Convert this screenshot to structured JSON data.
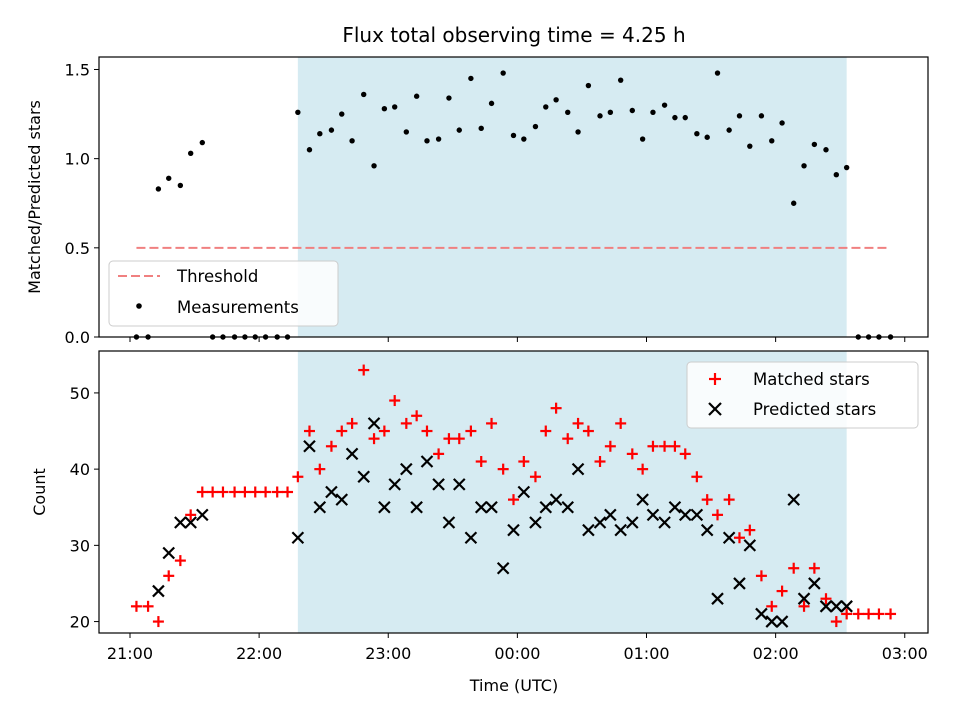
{
  "chart_data": {
    "title": "Flux total observing time = 4.25 h",
    "xlabel": "Time (UTC)",
    "x_unit": "hours since 21:00 UTC",
    "x_domain": [
      -0.24,
      6.18
    ],
    "xticks": [
      {
        "value": 0,
        "label": "21:00"
      },
      {
        "value": 1,
        "label": "22:00"
      },
      {
        "value": 2,
        "label": "23:00"
      },
      {
        "value": 3,
        "label": "00:00"
      },
      {
        "value": 4,
        "label": "01:00"
      },
      {
        "value": 5,
        "label": "02:00"
      },
      {
        "value": 6,
        "label": "03:00"
      }
    ],
    "shaded_interval": {
      "start": 1.3,
      "end": 5.55,
      "color": "#add8e6"
    },
    "panels": [
      {
        "type": "scatter",
        "ylabel": "Matched/Predicted stars",
        "ylim": [
          0,
          1.57
        ],
        "yticks": [
          {
            "value": 0,
            "label": "0.0"
          },
          {
            "value": 0.5,
            "label": "0.5"
          },
          {
            "value": 1,
            "label": "1.0"
          },
          {
            "value": 1.5,
            "label": "1.5"
          }
        ],
        "threshold": {
          "name": "Threshold",
          "value": 0.5,
          "x_range": [
            0.05,
            5.88
          ],
          "color": "#f08080"
        },
        "series": [
          {
            "name": "Measurements",
            "color": "#000000",
            "marker": "dot",
            "points": [
              [
                0.05,
                0
              ],
              [
                0.14,
                0
              ],
              [
                0.22,
                0.83
              ],
              [
                0.3,
                0.89
              ],
              [
                0.39,
                0.85
              ],
              [
                0.47,
                1.03
              ],
              [
                0.56,
                1.09
              ],
              [
                0.64,
                0
              ],
              [
                0.72,
                0
              ],
              [
                0.81,
                0
              ],
              [
                0.89,
                0
              ],
              [
                0.97,
                0
              ],
              [
                1.05,
                0
              ],
              [
                1.14,
                0
              ],
              [
                1.22,
                0
              ],
              [
                1.3,
                1.26
              ],
              [
                1.39,
                1.05
              ],
              [
                1.47,
                1.14
              ],
              [
                1.56,
                1.16
              ],
              [
                1.64,
                1.25
              ],
              [
                1.72,
                1.1
              ],
              [
                1.81,
                1.36
              ],
              [
                1.89,
                0.96
              ],
              [
                1.97,
                1.28
              ],
              [
                2.05,
                1.29
              ],
              [
                2.14,
                1.15
              ],
              [
                2.22,
                1.35
              ],
              [
                2.3,
                1.1
              ],
              [
                2.39,
                1.11
              ],
              [
                2.47,
                1.34
              ],
              [
                2.55,
                1.16
              ],
              [
                2.64,
                1.45
              ],
              [
                2.72,
                1.17
              ],
              [
                2.8,
                1.31
              ],
              [
                2.89,
                1.48
              ],
              [
                2.97,
                1.13
              ],
              [
                3.05,
                1.11
              ],
              [
                3.14,
                1.18
              ],
              [
                3.22,
                1.29
              ],
              [
                3.3,
                1.33
              ],
              [
                3.39,
                1.26
              ],
              [
                3.47,
                1.15
              ],
              [
                3.55,
                1.41
              ],
              [
                3.64,
                1.24
              ],
              [
                3.72,
                1.26
              ],
              [
                3.8,
                1.44
              ],
              [
                3.89,
                1.27
              ],
              [
                3.97,
                1.11
              ],
              [
                4.05,
                1.26
              ],
              [
                4.14,
                1.3
              ],
              [
                4.22,
                1.23
              ],
              [
                4.3,
                1.23
              ],
              [
                4.39,
                1.14
              ],
              [
                4.47,
                1.12
              ],
              [
                4.55,
                1.48
              ],
              [
                4.64,
                1.16
              ],
              [
                4.72,
                1.24
              ],
              [
                4.8,
                1.07
              ],
              [
                4.89,
                1.24
              ],
              [
                4.97,
                1.1
              ],
              [
                5.05,
                1.2
              ],
              [
                5.14,
                0.75
              ],
              [
                5.22,
                0.96
              ],
              [
                5.3,
                1.08
              ],
              [
                5.39,
                1.05
              ],
              [
                5.47,
                0.91
              ],
              [
                5.55,
                0.95
              ],
              [
                5.64,
                0
              ],
              [
                5.72,
                0
              ],
              [
                5.8,
                0
              ],
              [
                5.89,
                0
              ]
            ]
          }
        ],
        "legend": {
          "placement": "lower-left",
          "entries": [
            {
              "label": "Threshold",
              "key": "threshold"
            },
            {
              "label": "Measurements",
              "key": "measurements"
            }
          ]
        }
      },
      {
        "type": "scatter",
        "ylabel": "Count",
        "ylim": [
          18.5,
          55.5
        ],
        "yticks": [
          {
            "value": 20,
            "label": "20"
          },
          {
            "value": 30,
            "label": "30"
          },
          {
            "value": 40,
            "label": "40"
          },
          {
            "value": 50,
            "label": "50"
          }
        ],
        "series": [
          {
            "name": "Matched stars",
            "color": "#ff0000",
            "marker": "plus",
            "points": [
              [
                0.05,
                22
              ],
              [
                0.14,
                22
              ],
              [
                0.22,
                20
              ],
              [
                0.3,
                26
              ],
              [
                0.39,
                28
              ],
              [
                0.47,
                34
              ],
              [
                0.56,
                37
              ],
              [
                0.64,
                37
              ],
              [
                0.72,
                37
              ],
              [
                0.81,
                37
              ],
              [
                0.89,
                37
              ],
              [
                0.97,
                37
              ],
              [
                1.05,
                37
              ],
              [
                1.14,
                37
              ],
              [
                1.22,
                37
              ],
              [
                1.3,
                39
              ],
              [
                1.39,
                45
              ],
              [
                1.47,
                40
              ],
              [
                1.56,
                43
              ],
              [
                1.64,
                45
              ],
              [
                1.72,
                46
              ],
              [
                1.81,
                53
              ],
              [
                1.89,
                44
              ],
              [
                1.97,
                45
              ],
              [
                2.05,
                49
              ],
              [
                2.14,
                46
              ],
              [
                2.22,
                47
              ],
              [
                2.3,
                45
              ],
              [
                2.39,
                42
              ],
              [
                2.47,
                44
              ],
              [
                2.55,
                44
              ],
              [
                2.64,
                45
              ],
              [
                2.72,
                41
              ],
              [
                2.8,
                46
              ],
              [
                2.89,
                40
              ],
              [
                2.97,
                36
              ],
              [
                3.05,
                41
              ],
              [
                3.14,
                39
              ],
              [
                3.22,
                45
              ],
              [
                3.3,
                48
              ],
              [
                3.39,
                44
              ],
              [
                3.47,
                46
              ],
              [
                3.55,
                45
              ],
              [
                3.64,
                41
              ],
              [
                3.72,
                43
              ],
              [
                3.8,
                46
              ],
              [
                3.89,
                42
              ],
              [
                3.97,
                40
              ],
              [
                4.05,
                43
              ],
              [
                4.14,
                43
              ],
              [
                4.22,
                43
              ],
              [
                4.3,
                42
              ],
              [
                4.39,
                39
              ],
              [
                4.47,
                36
              ],
              [
                4.55,
                34
              ],
              [
                4.64,
                36
              ],
              [
                4.72,
                31
              ],
              [
                4.8,
                32
              ],
              [
                4.89,
                26
              ],
              [
                4.97,
                22
              ],
              [
                5.05,
                24
              ],
              [
                5.14,
                27
              ],
              [
                5.22,
                22
              ],
              [
                5.3,
                27
              ],
              [
                5.39,
                23
              ],
              [
                5.47,
                20
              ],
              [
                5.55,
                21
              ],
              [
                5.64,
                21
              ],
              [
                5.72,
                21
              ],
              [
                5.8,
                21
              ],
              [
                5.89,
                21
              ]
            ]
          },
          {
            "name": "Predicted stars",
            "color": "#000000",
            "marker": "x",
            "points": [
              [
                0.22,
                24
              ],
              [
                0.3,
                29
              ],
              [
                0.39,
                33
              ],
              [
                0.47,
                33
              ],
              [
                0.56,
                34
              ],
              [
                1.3,
                31
              ],
              [
                1.39,
                43
              ],
              [
                1.47,
                35
              ],
              [
                1.56,
                37
              ],
              [
                1.64,
                36
              ],
              [
                1.72,
                42
              ],
              [
                1.81,
                39
              ],
              [
                1.89,
                46
              ],
              [
                1.97,
                35
              ],
              [
                2.05,
                38
              ],
              [
                2.14,
                40
              ],
              [
                2.22,
                35
              ],
              [
                2.3,
                41
              ],
              [
                2.39,
                38
              ],
              [
                2.47,
                33
              ],
              [
                2.55,
                38
              ],
              [
                2.64,
                31
              ],
              [
                2.72,
                35
              ],
              [
                2.8,
                35
              ],
              [
                2.89,
                27
              ],
              [
                2.97,
                32
              ],
              [
                3.05,
                37
              ],
              [
                3.14,
                33
              ],
              [
                3.22,
                35
              ],
              [
                3.3,
                36
              ],
              [
                3.39,
                35
              ],
              [
                3.47,
                40
              ],
              [
                3.55,
                32
              ],
              [
                3.64,
                33
              ],
              [
                3.72,
                34
              ],
              [
                3.8,
                32
              ],
              [
                3.89,
                33
              ],
              [
                3.97,
                36
              ],
              [
                4.05,
                34
              ],
              [
                4.14,
                33
              ],
              [
                4.22,
                35
              ],
              [
                4.3,
                34
              ],
              [
                4.39,
                34
              ],
              [
                4.47,
                32
              ],
              [
                4.55,
                23
              ],
              [
                4.64,
                31
              ],
              [
                4.72,
                25
              ],
              [
                4.8,
                30
              ],
              [
                4.89,
                21
              ],
              [
                4.97,
                20
              ],
              [
                5.05,
                20
              ],
              [
                5.14,
                36
              ],
              [
                5.22,
                23
              ],
              [
                5.3,
                25
              ],
              [
                5.39,
                22
              ],
              [
                5.47,
                22
              ],
              [
                5.55,
                22
              ]
            ]
          }
        ],
        "legend": {
          "placement": "upper-right",
          "entries": [
            {
              "label": "Matched stars",
              "key": "matched"
            },
            {
              "label": "Predicted stars",
              "key": "predicted"
            }
          ]
        }
      }
    ]
  }
}
